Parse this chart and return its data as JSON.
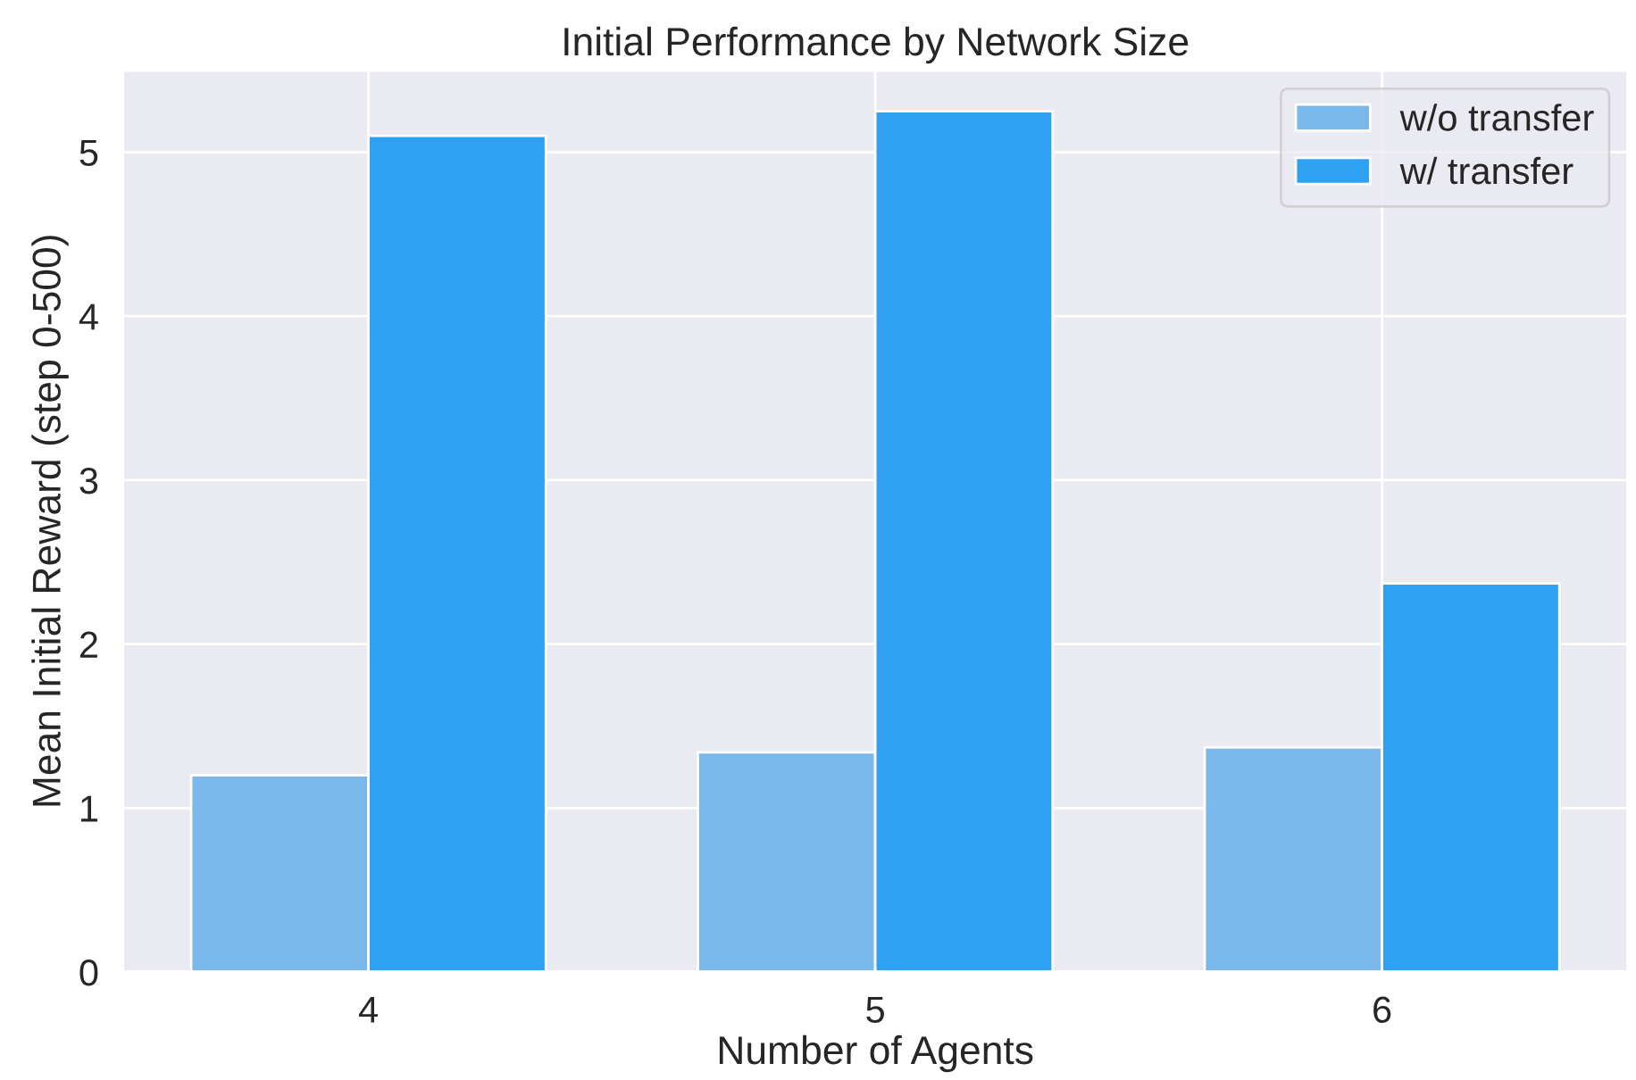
{
  "chart_data": {
    "type": "bar",
    "title": "Initial Performance by Network Size",
    "xlabel": "Number of Agents",
    "ylabel": "Mean Initial Reward (step 0-500)",
    "categories": [
      "4",
      "5",
      "6"
    ],
    "series": [
      {
        "name": "w/o transfer",
        "color": "#7ab8e9",
        "values": [
          1.2,
          1.34,
          1.37
        ]
      },
      {
        "name": "w/ transfer",
        "color": "#2ea1f2",
        "values": [
          5.1,
          5.25,
          2.37
        ]
      }
    ],
    "ylim": [
      0,
      5.5
    ],
    "yticks": [
      0,
      1,
      2,
      3,
      4,
      5
    ],
    "grid": true,
    "legend": "top right"
  }
}
